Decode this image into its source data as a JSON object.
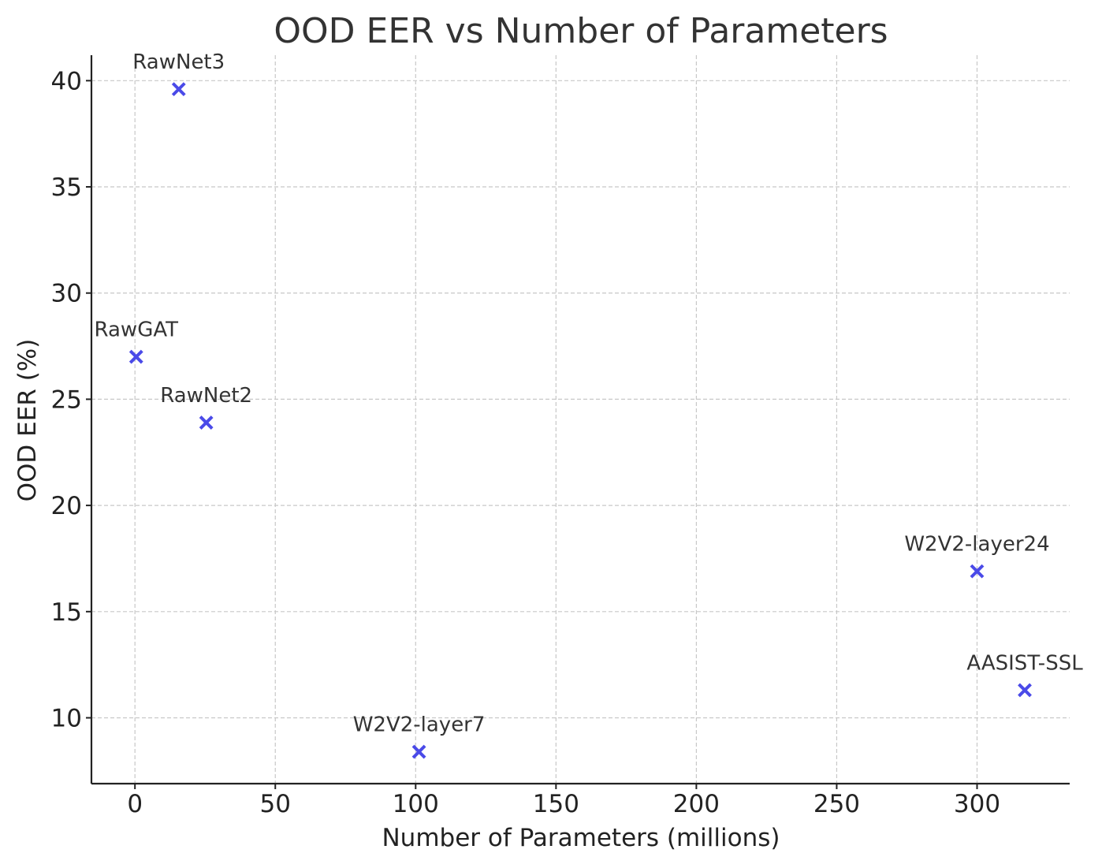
{
  "chart_data": {
    "type": "scatter",
    "title": "OOD EER vs Number of Parameters",
    "xlabel": "Number of Parameters (millions)",
    "ylabel": "OOD EER (%)",
    "xlim": [
      -15.5,
      333
    ],
    "ylim": [
      6.9,
      41.2
    ],
    "xticks": [
      0,
      50,
      100,
      150,
      200,
      250,
      300
    ],
    "yticks": [
      10,
      15,
      20,
      25,
      30,
      35,
      40
    ],
    "grid": true,
    "marker": "x",
    "color": "#4a4ae8",
    "series": [
      {
        "points": [
          {
            "label": "RawNet3",
            "x": 15.6,
            "y": 39.6
          },
          {
            "label": "RawGAT",
            "x": 0.44,
            "y": 27.0
          },
          {
            "label": "RawNet2",
            "x": 25.4,
            "y": 23.9
          },
          {
            "label": "W2V2-layer7",
            "x": 101.2,
            "y": 8.4
          },
          {
            "label": "W2V2-layer24",
            "x": 300,
            "y": 16.9
          },
          {
            "label": "AASIST-SSL",
            "x": 317,
            "y": 11.3
          }
        ]
      }
    ]
  }
}
